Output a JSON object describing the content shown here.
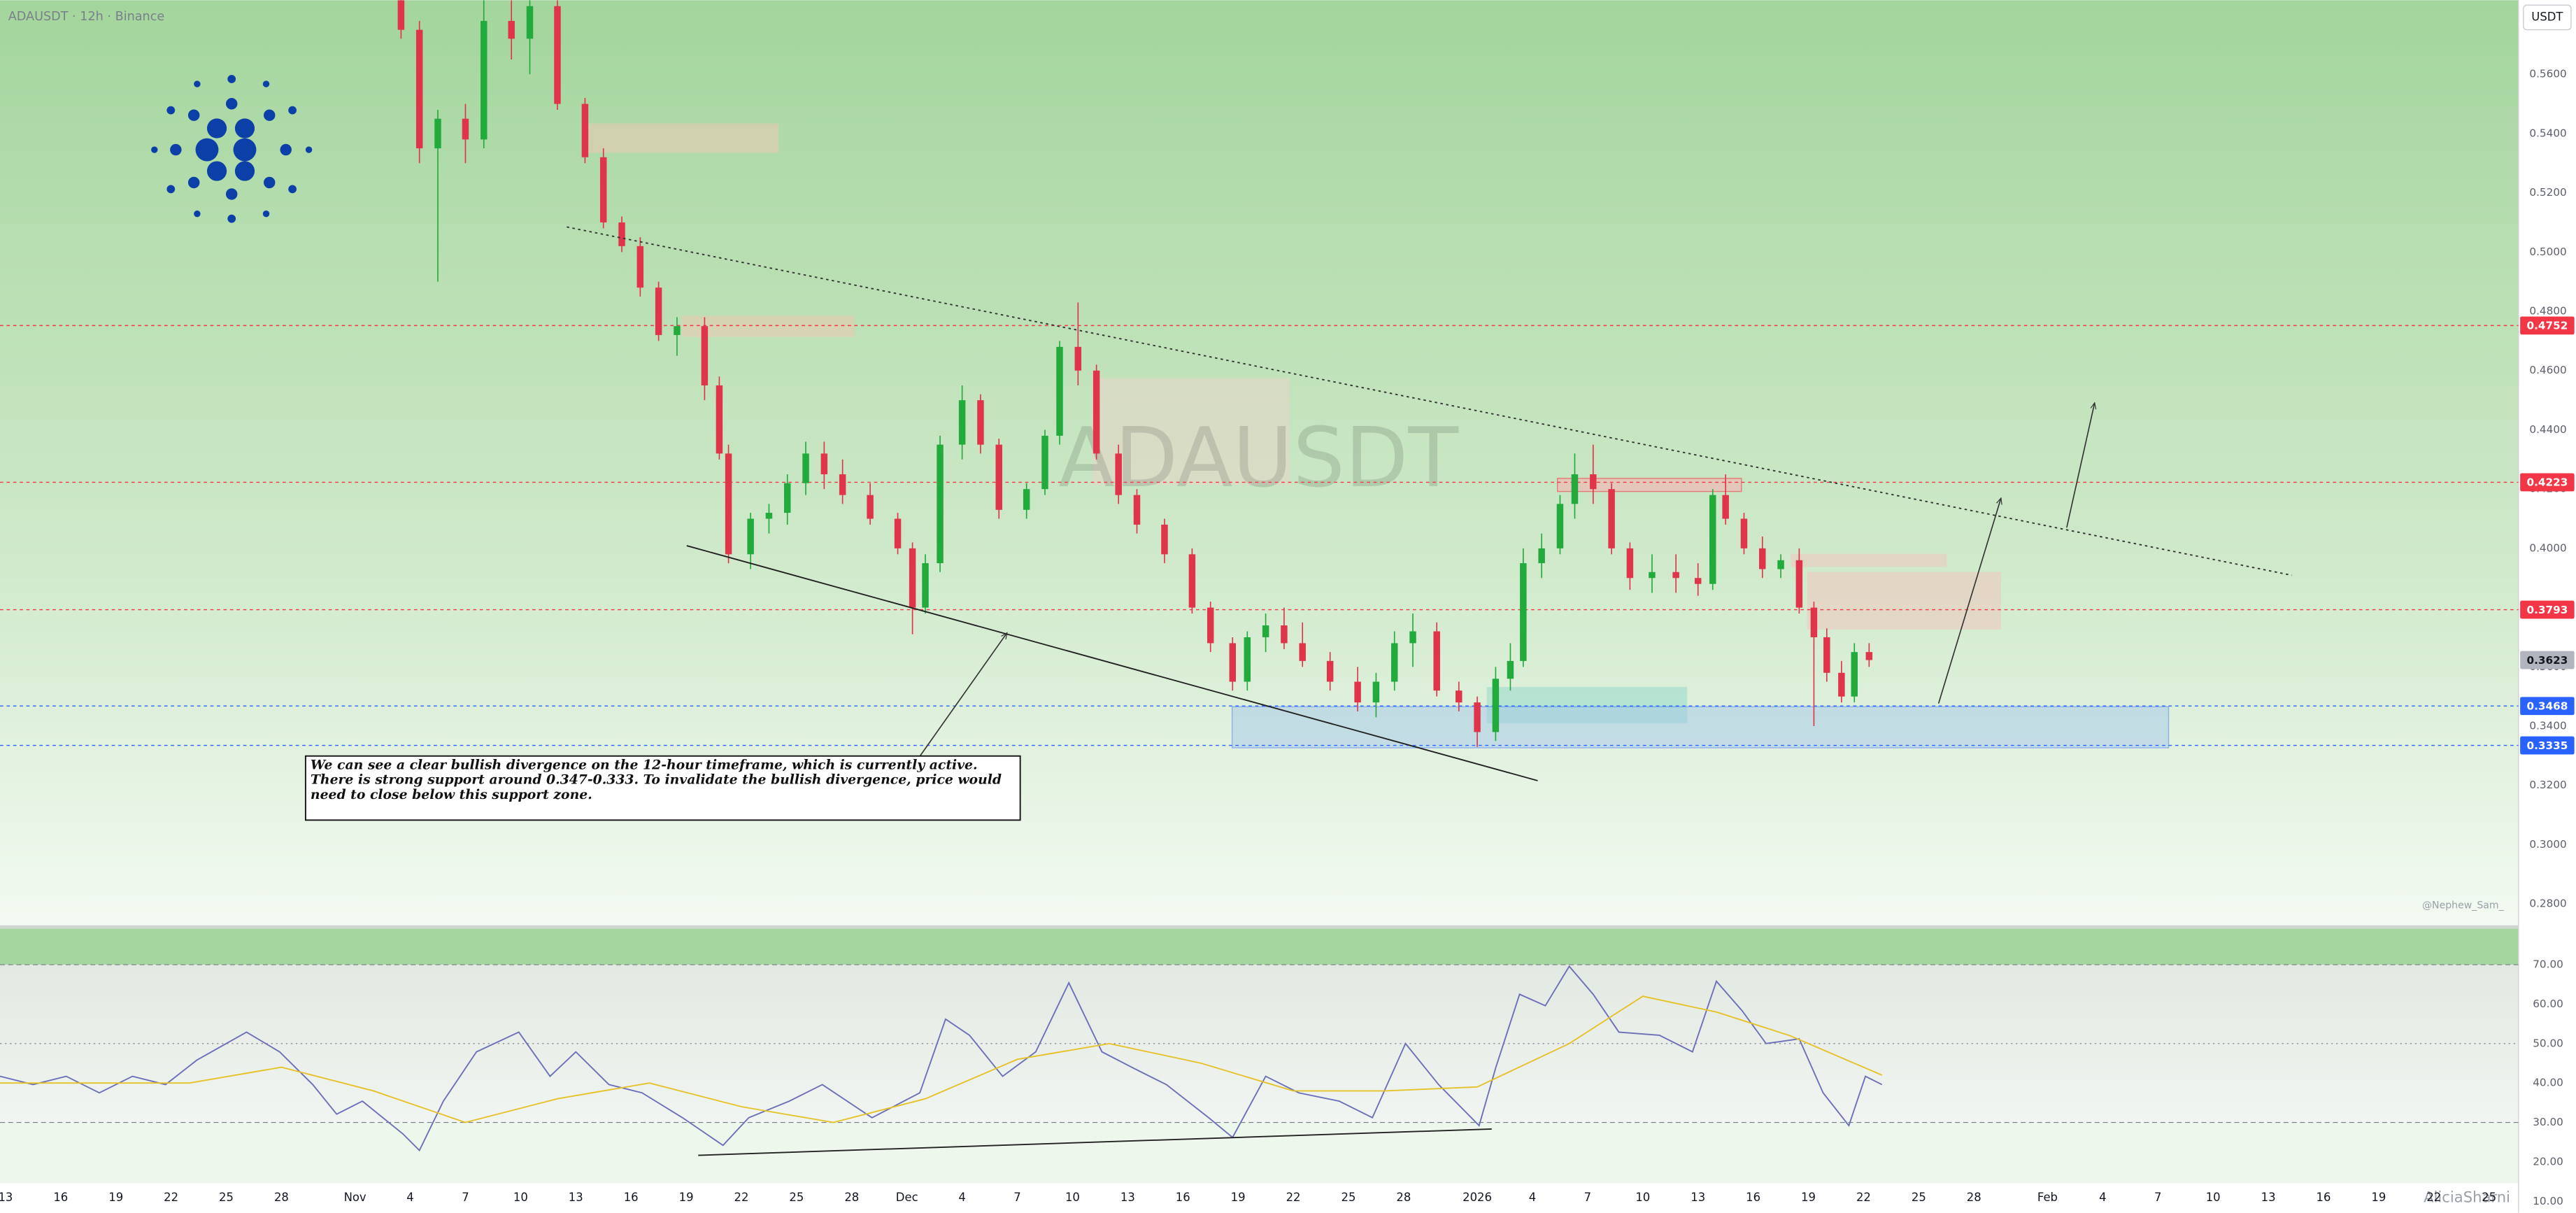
{
  "chart_data": [
    {
      "type": "candlestick",
      "title": "ADAUSDT · 12h · Binance",
      "watermark": "ADAUSDT",
      "currency": "USDT",
      "credit": "@Nephew_Sam_",
      "signature": "AliciaSharni",
      "annotation": "We can see a clear bullish divergence on the 12-hour timeframe, which is currently active. There is strong support around 0.347-0.333. To invalidate the bullish divergence, price would need to close below this support zone.",
      "up_color": "#22ab3c",
      "down_color": "#e0344a",
      "x": [
        21.5,
        22.5,
        23.5,
        25,
        26,
        27.5,
        28.5,
        30,
        31.5,
        32.5,
        33.5,
        34.5,
        35.5,
        36.5,
        38,
        38.8,
        39.3,
        40.5,
        41.5,
        42.5,
        43.5,
        44.5,
        45.5,
        47,
        48.5,
        49.3,
        50,
        50.8,
        52,
        53,
        54,
        55.5,
        56.5,
        57.3,
        58.3,
        59.3,
        60.5,
        61.5,
        63,
        64.5,
        65.5,
        66.7,
        67.5,
        68.5,
        69.5,
        70.5,
        72,
        73.5,
        74.5,
        75.5,
        76.5,
        77.8,
        79,
        80,
        81,
        81.8,
        82.5,
        83.5,
        84.5,
        85.3,
        86.3,
        87.3,
        88.3,
        89.5,
        90.8,
        92,
        92.8,
        93.5,
        94.5,
        95.5,
        96.5,
        97.5,
        98.3,
        99,
        99.8,
        100.5,
        101.3
      ],
      "open": [
        0.585,
        0.575,
        0.535,
        0.545,
        0.538,
        0.578,
        0.572,
        0.583,
        0.55,
        0.532,
        0.51,
        0.502,
        0.488,
        0.472,
        0.475,
        0.455,
        0.432,
        0.398,
        0.41,
        0.412,
        0.422,
        0.432,
        0.425,
        0.418,
        0.41,
        0.4,
        0.38,
        0.395,
        0.435,
        0.45,
        0.435,
        0.413,
        0.42,
        0.438,
        0.468,
        0.46,
        0.432,
        0.418,
        0.408,
        0.398,
        0.38,
        0.368,
        0.355,
        0.37,
        0.374,
        0.368,
        0.362,
        0.355,
        0.348,
        0.355,
        0.368,
        0.372,
        0.352,
        0.348,
        0.338,
        0.356,
        0.362,
        0.395,
        0.4,
        0.415,
        0.425,
        0.42,
        0.4,
        0.39,
        0.392,
        0.39,
        0.388,
        0.418,
        0.41,
        0.4,
        0.393,
        0.396,
        0.38,
        0.37,
        0.358,
        0.35,
        0.365
      ],
      "high": [
        0.59,
        0.578,
        0.548,
        0.55,
        0.585,
        0.585,
        0.585,
        0.585,
        0.552,
        0.535,
        0.512,
        0.505,
        0.49,
        0.478,
        0.478,
        0.458,
        0.435,
        0.412,
        0.415,
        0.425,
        0.436,
        0.436,
        0.43,
        0.422,
        0.412,
        0.402,
        0.398,
        0.438,
        0.455,
        0.452,
        0.437,
        0.422,
        0.44,
        0.47,
        0.483,
        0.462,
        0.435,
        0.42,
        0.41,
        0.4,
        0.382,
        0.37,
        0.372,
        0.378,
        0.38,
        0.375,
        0.365,
        0.36,
        0.358,
        0.372,
        0.378,
        0.375,
        0.355,
        0.35,
        0.36,
        0.368,
        0.4,
        0.405,
        0.418,
        0.432,
        0.435,
        0.422,
        0.402,
        0.398,
        0.398,
        0.395,
        0.42,
        0.425,
        0.412,
        0.404,
        0.398,
        0.4,
        0.382,
        0.373,
        0.362,
        0.368,
        0.368
      ],
      "low": [
        0.572,
        0.53,
        0.49,
        0.53,
        0.535,
        0.565,
        0.56,
        0.548,
        0.53,
        0.508,
        0.5,
        0.485,
        0.47,
        0.465,
        0.45,
        0.43,
        0.395,
        0.393,
        0.405,
        0.408,
        0.418,
        0.42,
        0.415,
        0.408,
        0.398,
        0.371,
        0.378,
        0.392,
        0.43,
        0.432,
        0.41,
        0.41,
        0.418,
        0.435,
        0.455,
        0.43,
        0.415,
        0.405,
        0.395,
        0.378,
        0.365,
        0.352,
        0.352,
        0.365,
        0.366,
        0.36,
        0.352,
        0.345,
        0.343,
        0.352,
        0.36,
        0.35,
        0.345,
        0.333,
        0.335,
        0.352,
        0.36,
        0.39,
        0.398,
        0.41,
        0.415,
        0.398,
        0.386,
        0.385,
        0.385,
        0.384,
        0.386,
        0.408,
        0.398,
        0.39,
        0.39,
        0.378,
        0.34,
        0.355,
        0.348,
        0.348,
        0.36
      ],
      "close": [
        0.575,
        0.535,
        0.545,
        0.538,
        0.578,
        0.572,
        0.583,
        0.55,
        0.532,
        0.51,
        0.502,
        0.488,
        0.472,
        0.475,
        0.455,
        0.432,
        0.398,
        0.41,
        0.412,
        0.422,
        0.432,
        0.425,
        0.418,
        0.41,
        0.4,
        0.38,
        0.395,
        0.435,
        0.45,
        0.435,
        0.413,
        0.42,
        0.438,
        0.468,
        0.46,
        0.432,
        0.418,
        0.408,
        0.398,
        0.38,
        0.368,
        0.355,
        0.37,
        0.374,
        0.368,
        0.362,
        0.355,
        0.348,
        0.355,
        0.368,
        0.372,
        0.352,
        0.348,
        0.338,
        0.356,
        0.362,
        0.395,
        0.4,
        0.415,
        0.425,
        0.42,
        0.4,
        0.39,
        0.392,
        0.39,
        0.388,
        0.418,
        0.41,
        0.4,
        0.393,
        0.396,
        0.38,
        0.37,
        0.358,
        0.35,
        0.365,
        0.3623
      ],
      "xlim": [
        -0.3,
        136.6
      ],
      "xticks": [
        {
          "value": 0,
          "label": "13"
        },
        {
          "value": 3,
          "label": "16"
        },
        {
          "value": 6,
          "label": "19"
        },
        {
          "value": 9,
          "label": "22"
        },
        {
          "value": 12,
          "label": "25"
        },
        {
          "value": 15,
          "label": "28"
        },
        {
          "value": 19,
          "label": "Nov"
        },
        {
          "value": 22,
          "label": "4"
        },
        {
          "value": 25,
          "label": "7"
        },
        {
          "value": 28,
          "label": "10"
        },
        {
          "value": 31,
          "label": "13"
        },
        {
          "value": 34,
          "label": "16"
        },
        {
          "value": 37,
          "label": "19"
        },
        {
          "value": 40,
          "label": "22"
        },
        {
          "value": 43,
          "label": "25"
        },
        {
          "value": 46,
          "label": "28"
        },
        {
          "value": 49,
          "label": "Dec"
        },
        {
          "value": 52,
          "label": "4"
        },
        {
          "value": 55,
          "label": "7"
        },
        {
          "value": 58,
          "label": "10"
        },
        {
          "value": 61,
          "label": "13"
        },
        {
          "value": 64,
          "label": "16"
        },
        {
          "value": 67,
          "label": "19"
        },
        {
          "value": 70,
          "label": "22"
        },
        {
          "value": 73,
          "label": "25"
        },
        {
          "value": 76,
          "label": "28"
        },
        {
          "value": 80,
          "label": "2026"
        },
        {
          "value": 83,
          "label": "4"
        },
        {
          "value": 86,
          "label": "7"
        },
        {
          "value": 89,
          "label": "10"
        },
        {
          "value": 92,
          "label": "13"
        },
        {
          "value": 95,
          "label": "16"
        },
        {
          "value": 98,
          "label": "19"
        },
        {
          "value": 101,
          "label": "22"
        },
        {
          "value": 104,
          "label": "25"
        },
        {
          "value": 107,
          "label": "28"
        },
        {
          "value": 111,
          "label": "Feb"
        },
        {
          "value": 114,
          "label": "4"
        },
        {
          "value": 117,
          "label": "7"
        },
        {
          "value": 120,
          "label": "10"
        },
        {
          "value": 123,
          "label": "13"
        },
        {
          "value": 126,
          "label": "16"
        },
        {
          "value": 129,
          "label": "19"
        },
        {
          "value": 132,
          "label": "22"
        },
        {
          "value": 135,
          "label": "25"
        }
      ],
      "ylim": [
        0.2728,
        0.585
      ],
      "yticks": [
        {
          "value": 0.28,
          "label": "0.2800"
        },
        {
          "value": 0.3,
          "label": "0.3000"
        },
        {
          "value": 0.32,
          "label": "0.3200"
        },
        {
          "value": 0.34,
          "label": "0.3400"
        },
        {
          "value": 0.36,
          "label": "0.3600"
        },
        {
          "value": 0.38,
          "label": "0.3800"
        },
        {
          "value": 0.4,
          "label": "0.4000"
        },
        {
          "value": 0.42,
          "label": "0.4200"
        },
        {
          "value": 0.44,
          "label": "0.4400"
        },
        {
          "value": 0.46,
          "label": "0.4600"
        },
        {
          "value": 0.48,
          "label": "0.4800"
        },
        {
          "value": 0.5,
          "label": "0.5000"
        },
        {
          "value": 0.52,
          "label": "0.5200"
        },
        {
          "value": 0.54,
          "label": "0.5400"
        },
        {
          "value": 0.56,
          "label": "0.5600"
        }
      ],
      "levels": [
        {
          "value": 0.4752,
          "color": "#f23645",
          "line": true
        },
        {
          "value": 0.4223,
          "color": "#f23645",
          "line": true
        },
        {
          "value": 0.3793,
          "color": "#f23645",
          "line": true
        },
        {
          "value": 0.3623,
          "color": "#b2b5be",
          "line": false
        },
        {
          "value": 0.3468,
          "color": "#2962ff",
          "line": true
        },
        {
          "value": 0.3335,
          "color": "#2962ff",
          "line": true
        }
      ]
    },
    {
      "type": "line",
      "series": [
        {
          "color": "#6b6fb8",
          "x": [
            -0.3,
            1.5,
            3.3,
            5.1,
            6.9,
            8.7,
            10.4,
            13.1,
            14.9,
            16.7,
            18,
            19.4,
            21.6,
            22.5,
            23.8,
            25.6,
            27.9,
            29.6,
            31,
            32.8,
            34.6,
            36.8,
            39,
            40.4,
            42.6,
            44.4,
            47.1,
            49.7,
            51.1,
            52.4,
            54.2,
            56,
            57.8,
            59.6,
            61.3,
            63.1,
            65.4,
            66.7,
            68.5,
            70.3,
            72.5,
            74.3,
            76.1,
            77.9,
            80.1,
            81,
            82.3,
            83.7,
            85,
            86.3,
            87.7,
            89.9,
            91.7,
            93,
            94.4,
            95.7,
            97.5,
            98.8,
            100.2,
            101.1,
            102
          ],
          "values": [
            41.7,
            39.6,
            41.7,
            37.5,
            41.7,
            39.6,
            45.8,
            52.9,
            47.9,
            39.6,
            32.1,
            35.4,
            27.1,
            22.9,
            35.4,
            47.9,
            52.9,
            41.7,
            47.9,
            39.6,
            37.5,
            31.2,
            24.2,
            31.2,
            35.4,
            39.6,
            31.2,
            37.5,
            56.2,
            52.1,
            41.7,
            47.9,
            65.4,
            47.9,
            43.8,
            39.6,
            31.2,
            26.2,
            41.7,
            37.5,
            35.4,
            31.2,
            50,
            39.6,
            29.2,
            43.8,
            62.5,
            59.6,
            69.6,
            62.5,
            52.9,
            52.1,
            47.9,
            65.8,
            58.3,
            50,
            51.2,
            37.5,
            29.2,
            41.7,
            39.6
          ]
        },
        {
          "color": "#e6c229",
          "x": [
            -0.3,
            10,
            15,
            20,
            25,
            30,
            35,
            40,
            45,
            50,
            55,
            60,
            65,
            70,
            75,
            80,
            85,
            89,
            93,
            97,
            100,
            102
          ],
          "values": [
            40,
            40,
            44,
            38,
            30,
            36,
            40,
            34,
            30,
            36,
            46,
            50,
            45,
            38,
            38,
            39,
            50,
            62,
            58,
            52,
            46,
            42
          ]
        }
      ],
      "ylim": [
        7.08,
        79.17
      ],
      "yticks": [
        {
          "value": 10,
          "label": "10.00"
        },
        {
          "value": 20,
          "label": "20.00"
        },
        {
          "value": 30,
          "label": "30.00"
        },
        {
          "value": 40,
          "label": "40.00"
        },
        {
          "value": 50,
          "label": "50.00"
        },
        {
          "value": 60,
          "label": "60.00"
        },
        {
          "value": 70,
          "label": "70.00"
        }
      ],
      "bands": [
        30,
        50,
        70
      ]
    }
  ]
}
